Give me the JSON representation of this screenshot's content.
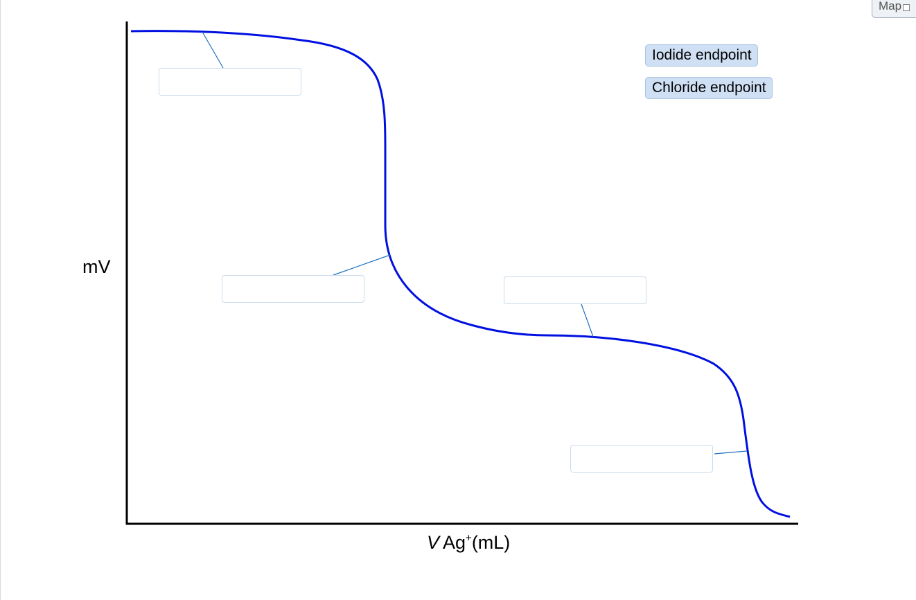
{
  "map_button": {
    "label": "Map"
  },
  "choices": [
    {
      "label": "Iodide endpoint"
    },
    {
      "label": "Chloride endpoint"
    }
  ],
  "axes": {
    "ylabel": "mV",
    "xlabel_italic": "V",
    "xlabel_base": "Ag",
    "xlabel_sup": "+",
    "xlabel_unit": "(mL)"
  },
  "drop_zones": [
    {
      "value": ""
    },
    {
      "value": ""
    },
    {
      "value": ""
    },
    {
      "value": ""
    }
  ],
  "colors": {
    "curve": "#0010e0",
    "leader": "#1f6fbf",
    "axis": "#000000"
  }
}
